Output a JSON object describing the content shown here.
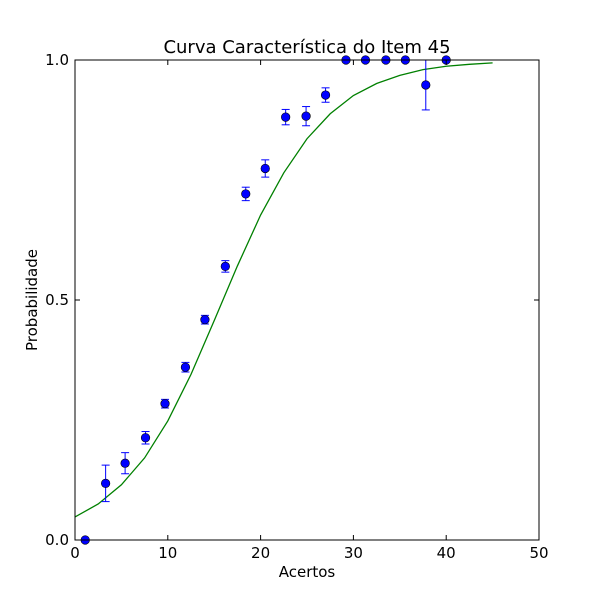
{
  "chart_data": {
    "type": "scatter",
    "title": "Curva Característica do Item 45",
    "xlabel": "Acertos",
    "ylabel": "Probabilidade",
    "xlim": [
      0,
      50
    ],
    "ylim": [
      0.0,
      1.0
    ],
    "xticks": [
      0,
      10,
      20,
      30,
      40,
      50
    ],
    "yticks": [
      0.0,
      0.5,
      1.0
    ],
    "xtick_labels": [
      "0",
      "10",
      "20",
      "30",
      "40",
      "50"
    ],
    "ytick_labels": [
      "0.0",
      "0.5",
      "1.0"
    ],
    "grid": false,
    "colors": {
      "points": "#0000ff",
      "errorbars": "#0000ff",
      "curve": "#008000",
      "axes": "#000000"
    },
    "points": [
      {
        "x": 1.1,
        "y": 0.0,
        "err": 0.0
      },
      {
        "x": 3.3,
        "y": 0.118,
        "err": 0.038
      },
      {
        "x": 5.4,
        "y": 0.16,
        "err": 0.022
      },
      {
        "x": 7.6,
        "y": 0.213,
        "err": 0.013
      },
      {
        "x": 9.7,
        "y": 0.284,
        "err": 0.009
      },
      {
        "x": 11.9,
        "y": 0.36,
        "err": 0.01
      },
      {
        "x": 14.0,
        "y": 0.459,
        "err": 0.009
      },
      {
        "x": 16.2,
        "y": 0.57,
        "err": 0.012
      },
      {
        "x": 18.4,
        "y": 0.721,
        "err": 0.014
      },
      {
        "x": 20.5,
        "y": 0.774,
        "err": 0.018
      },
      {
        "x": 22.7,
        "y": 0.881,
        "err": 0.016
      },
      {
        "x": 24.9,
        "y": 0.883,
        "err": 0.02
      },
      {
        "x": 27.0,
        "y": 0.927,
        "err": 0.015
      },
      {
        "x": 29.2,
        "y": 1.0,
        "err": 0.0
      },
      {
        "x": 31.3,
        "y": 1.0,
        "err": 0.0
      },
      {
        "x": 33.5,
        "y": 1.0,
        "err": 0.0
      },
      {
        "x": 35.6,
        "y": 1.0,
        "err": 0.0
      },
      {
        "x": 37.8,
        "y": 0.948,
        "err": 0.052
      },
      {
        "x": 40.0,
        "y": 1.0,
        "err": 0.0
      }
    ],
    "curve": {
      "x": [
        0,
        2.5,
        5,
        7.5,
        10,
        12.5,
        15,
        17.5,
        20,
        22.5,
        25,
        27.5,
        30,
        32.5,
        35,
        37.5,
        40,
        42.5,
        45
      ],
      "y": [
        0.048,
        0.075,
        0.115,
        0.171,
        0.248,
        0.345,
        0.457,
        0.571,
        0.677,
        0.765,
        0.836,
        0.888,
        0.926,
        0.951,
        0.968,
        0.98,
        0.987,
        0.991,
        0.994
      ]
    }
  }
}
